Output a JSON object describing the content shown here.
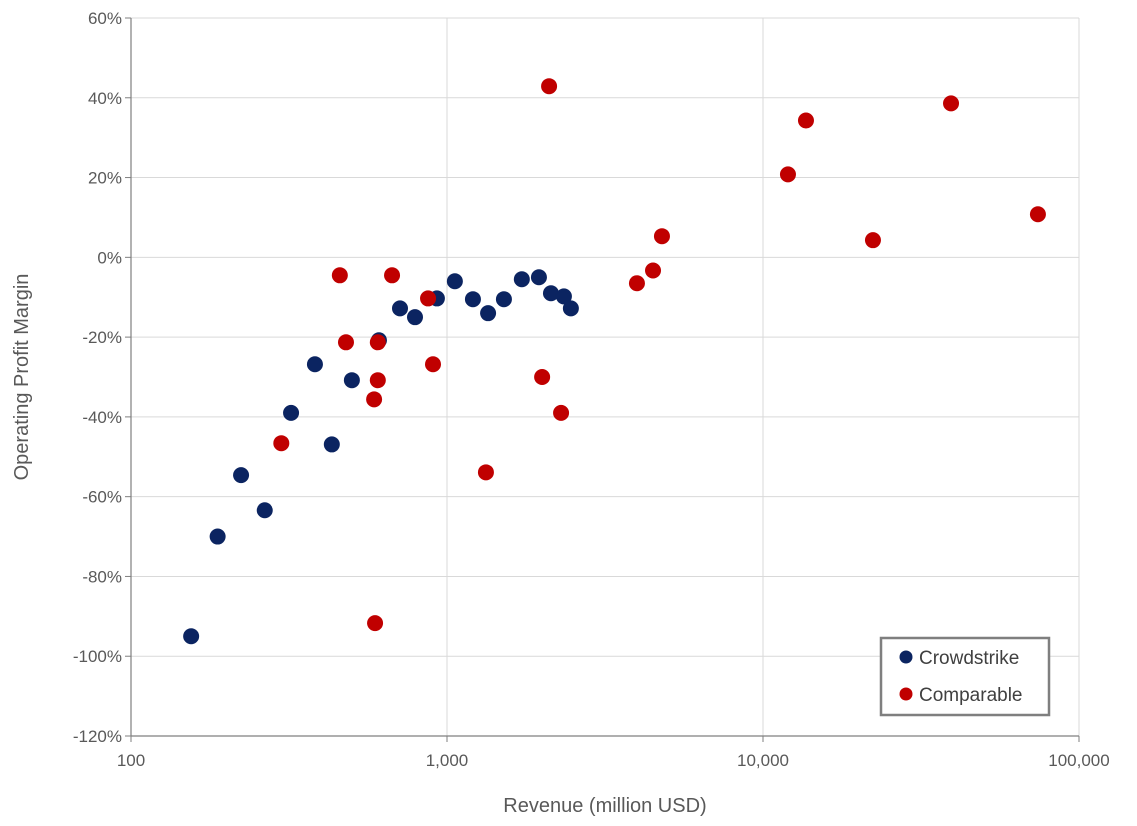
{
  "chart_data": {
    "type": "scatter",
    "title": "",
    "xlabel": "Revenue (million USD)",
    "ylabel": "Operating Profit Margin",
    "xscale": "log",
    "xlim": [
      100,
      100000
    ],
    "ylim": [
      -120,
      60
    ],
    "x_ticks": [
      100,
      1000,
      10000,
      100000
    ],
    "x_tick_labels": [
      "100",
      "1,000",
      "10,000",
      "100,000"
    ],
    "y_ticks": [
      60,
      40,
      20,
      0,
      -20,
      -40,
      -60,
      -80,
      -100,
      -120
    ],
    "y_tick_labels": [
      "60%",
      "40%",
      "20%",
      "0%",
      "-20%",
      "-40%",
      "-60%",
      "-80%",
      "-100%",
      "-120%"
    ],
    "grid": true,
    "legend_position": "bottom-right",
    "series": [
      {
        "name": "Crowdstrike",
        "color": "#0b2461",
        "points": [
          [
            155,
            -95
          ],
          [
            188,
            -70
          ],
          [
            223,
            -54.6
          ],
          [
            265,
            -63.4
          ],
          [
            321,
            -39
          ],
          [
            382,
            -26.8
          ],
          [
            432,
            -46.9
          ],
          [
            500,
            -30.8
          ],
          [
            609,
            -20.8
          ],
          [
            710,
            -12.8
          ],
          [
            792,
            -15
          ],
          [
            929,
            -10.3
          ],
          [
            1059,
            -6
          ],
          [
            1208,
            -10.5
          ],
          [
            1349,
            -14
          ],
          [
            1514,
            -10.5
          ],
          [
            1725,
            -5.5
          ],
          [
            1954,
            -5
          ],
          [
            2133,
            -9
          ],
          [
            2344,
            -9.8
          ],
          [
            2466,
            -12.8
          ]
        ]
      },
      {
        "name": "Comparable",
        "color": "#c00000",
        "points": [
          [
            299,
            -46.6
          ],
          [
            458,
            -4.5
          ],
          [
            479,
            -21.3
          ],
          [
            592,
            -91.7
          ],
          [
            588,
            -35.6
          ],
          [
            604,
            -30.8
          ],
          [
            604,
            -21.3
          ],
          [
            670,
            -4.5
          ],
          [
            871,
            -10.3
          ],
          [
            903,
            -26.8
          ],
          [
            1328,
            -53.9
          ],
          [
            2000,
            -30
          ],
          [
            2104,
            42.9
          ],
          [
            2296,
            -39
          ],
          [
            3991,
            -6.5
          ],
          [
            4487,
            -3.3
          ],
          [
            4789,
            5.3
          ],
          [
            11995,
            20.8
          ],
          [
            13677,
            34.3
          ],
          [
            22284,
            4.3
          ],
          [
            39357,
            38.6
          ],
          [
            74131,
            10.8
          ]
        ]
      }
    ]
  }
}
